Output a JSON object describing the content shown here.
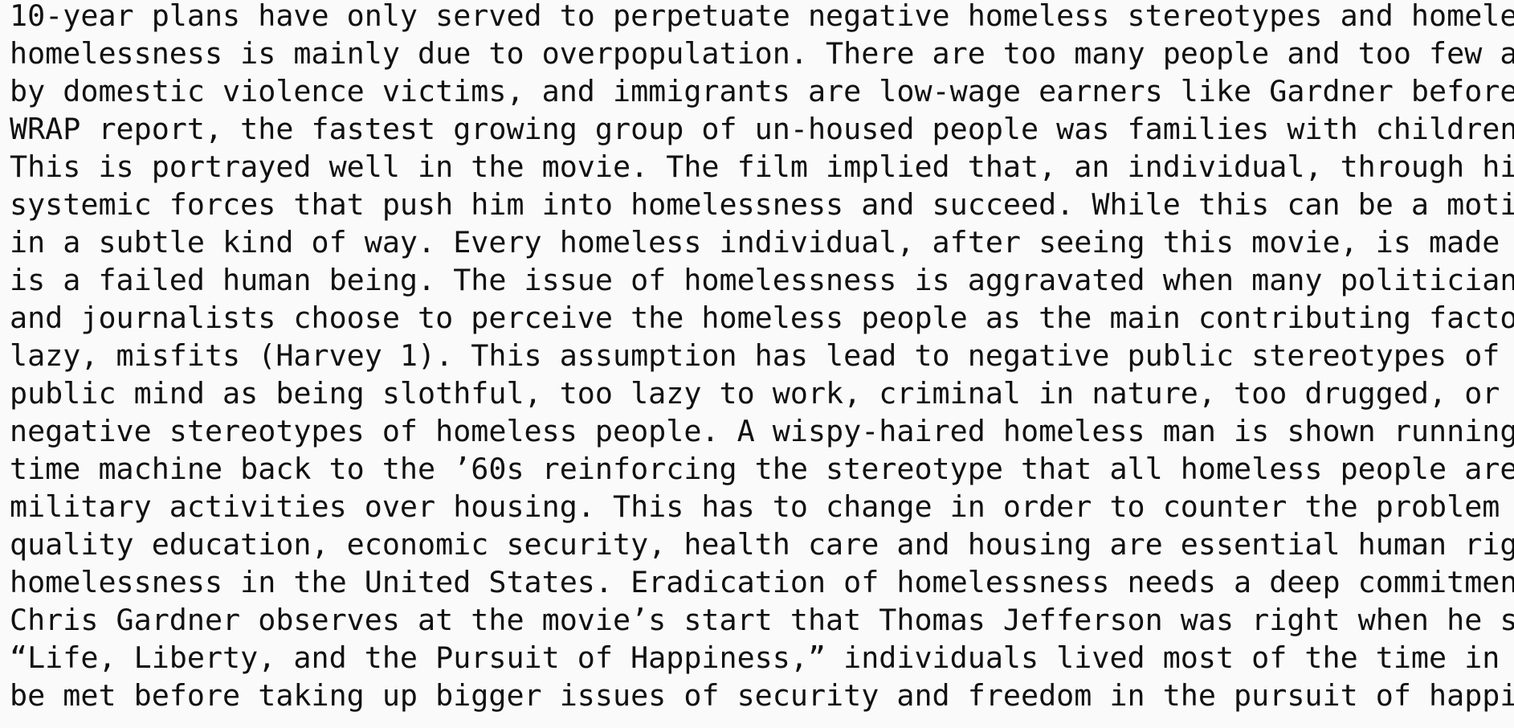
{
  "lines": [
    "10-year plans have only served to perpetuate negative homeless stereotypes and homele",
    "homelessness is mainly due to overpopulation. There are too many people and too few a",
    "by domestic violence victims, and immigrants are low-wage earners like Gardner before",
    "WRAP report, the fastest growing group of un-housed people was families with children",
    "This is portrayed well in the movie. The film implied that, an individual, through hi",
    "systemic forces that push him into homelessness and succeed. While this can be a moti",
    "in a subtle kind of way. Every homeless individual, after seeing this movie, is made",
    "is a failed human being. The issue of homelessness is aggravated when many politician",
    "and journalists choose to perceive the homeless people as the main contributing facto",
    "lazy, misfits (Harvey 1). This assumption has lead to negative public stereotypes of",
    "public mind as being slothful, too lazy to work, criminal in nature, too drugged, or",
    "negative stereotypes of homeless people. A wispy-haired homeless man is shown running",
    "time machine back to the ’60s reinforcing the stereotype that all homeless people are",
    "military activities over housing. This has to change in order to counter the problem",
    "quality education, economic security, health care and housing are essential human rig",
    "homelessness in the United States. Eradication of homelessness needs a deep commitmen",
    "Chris Gardner observes at the movie’s start that Thomas Jefferson was right when he s",
    "“Life, Liberty, and the Pursuit of Happiness,” individuals lived most of the time in",
    "be met before taking up bigger issues of security and freedom in the pursuit of happi"
  ]
}
